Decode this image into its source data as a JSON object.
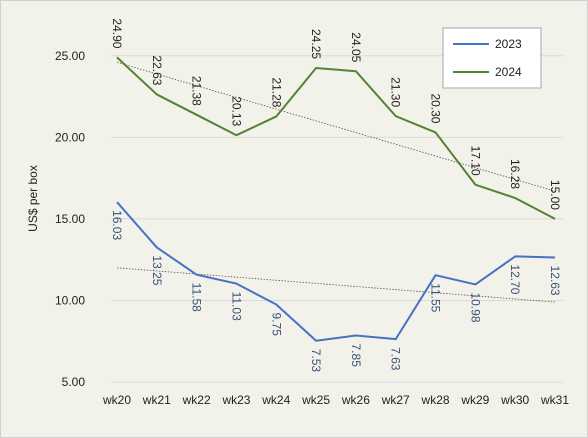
{
  "chart_data": {
    "type": "line",
    "title": "",
    "xlabel": "",
    "ylabel": "US$ per box",
    "categories": [
      "wk20",
      "wk21",
      "wk22",
      "wk23",
      "wk24",
      "wk25",
      "wk26",
      "wk27",
      "wk28",
      "wk29",
      "wk30",
      "wk31"
    ],
    "ylim": [
      5,
      27.5
    ],
    "yticks": [
      "5.00",
      "10.00",
      "15.00",
      "20.00",
      "25.00"
    ],
    "grid": true,
    "legend": "top-right",
    "series": [
      {
        "name": "2023",
        "color": "#4472c4",
        "values": [
          16.03,
          13.25,
          11.58,
          11.03,
          9.75,
          7.53,
          7.85,
          7.63,
          11.55,
          10.98,
          12.7,
          12.63
        ],
        "labels": [
          "16.03",
          "13.25",
          "11.58",
          "11.03",
          "9.75",
          "7.53",
          "7.85",
          "7.63",
          "11.55",
          "10.98",
          "12.70",
          "12.63"
        ],
        "trend": [
          12.0,
          9.9
        ]
      },
      {
        "name": "2024",
        "color": "#548235",
        "values": [
          24.9,
          22.63,
          21.38,
          20.13,
          21.28,
          24.25,
          24.05,
          21.3,
          20.3,
          17.1,
          16.28,
          15.0
        ],
        "labels": [
          "24.90",
          "22.63",
          "21.38",
          "20.13",
          "21.28",
          "24.25",
          "24.05",
          "21.30",
          "20.30",
          "17.10",
          "16.28",
          "15.00"
        ],
        "trend": [
          24.6,
          16.7
        ]
      }
    ]
  }
}
